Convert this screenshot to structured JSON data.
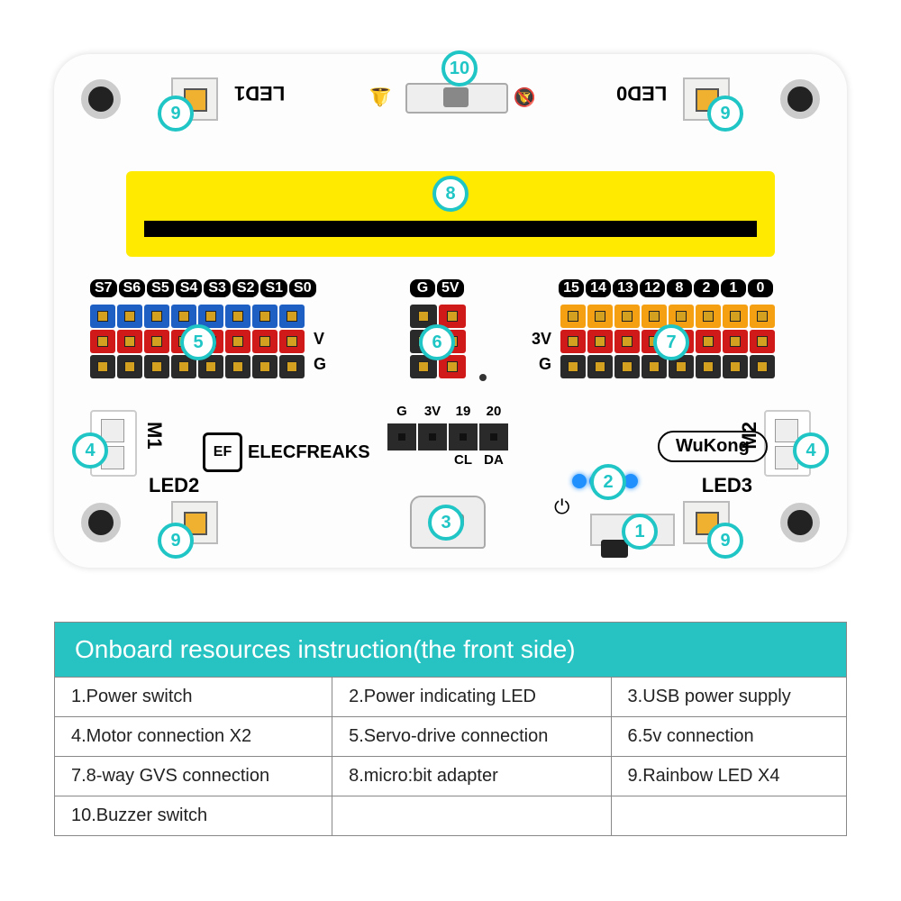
{
  "table": {
    "title": "Onboard resources instruction(the front side)",
    "items": [
      "1.Power switch",
      "2.Power indicating LED",
      "3.USB power supply",
      "4.Motor connection X2",
      "5.Servo-drive connection",
      "6.5v connection",
      "7.8-way GVS connection",
      "8.micro:bit adapter",
      "9.Rainbow LED X4",
      "10.Buzzer switch"
    ]
  },
  "board": {
    "led_labels": [
      "LED1",
      "LED0",
      "LED2",
      "LED3"
    ],
    "brand": "ELECFREAKS",
    "product": "WuKong",
    "m1": "M1",
    "m2": "M2",
    "servo_labels": [
      "S7",
      "S6",
      "S5",
      "S4",
      "S3",
      "S2",
      "S1",
      "S0"
    ],
    "gvs_labels": [
      "15",
      "14",
      "13",
      "12",
      "8",
      "2",
      "1",
      "0"
    ],
    "center_top": [
      "G",
      "5V"
    ],
    "i2c_top": [
      "G",
      "3V",
      "19",
      "20"
    ],
    "i2c_bottom": [
      "CL",
      "DA"
    ],
    "side_vg_left": [
      "V",
      "G"
    ],
    "side_3vg_right": [
      "3V",
      "G"
    ],
    "callout_nums": [
      "1",
      "2",
      "3",
      "4",
      "5",
      "6",
      "7",
      "8",
      "9",
      "10"
    ]
  },
  "colors": {
    "teal": "#20c5c5",
    "yellow": "#ffea00",
    "blue": "#1e5fc4",
    "red": "#d01a1a",
    "dark": "#2a2a2a",
    "orange": "#f5a012"
  }
}
